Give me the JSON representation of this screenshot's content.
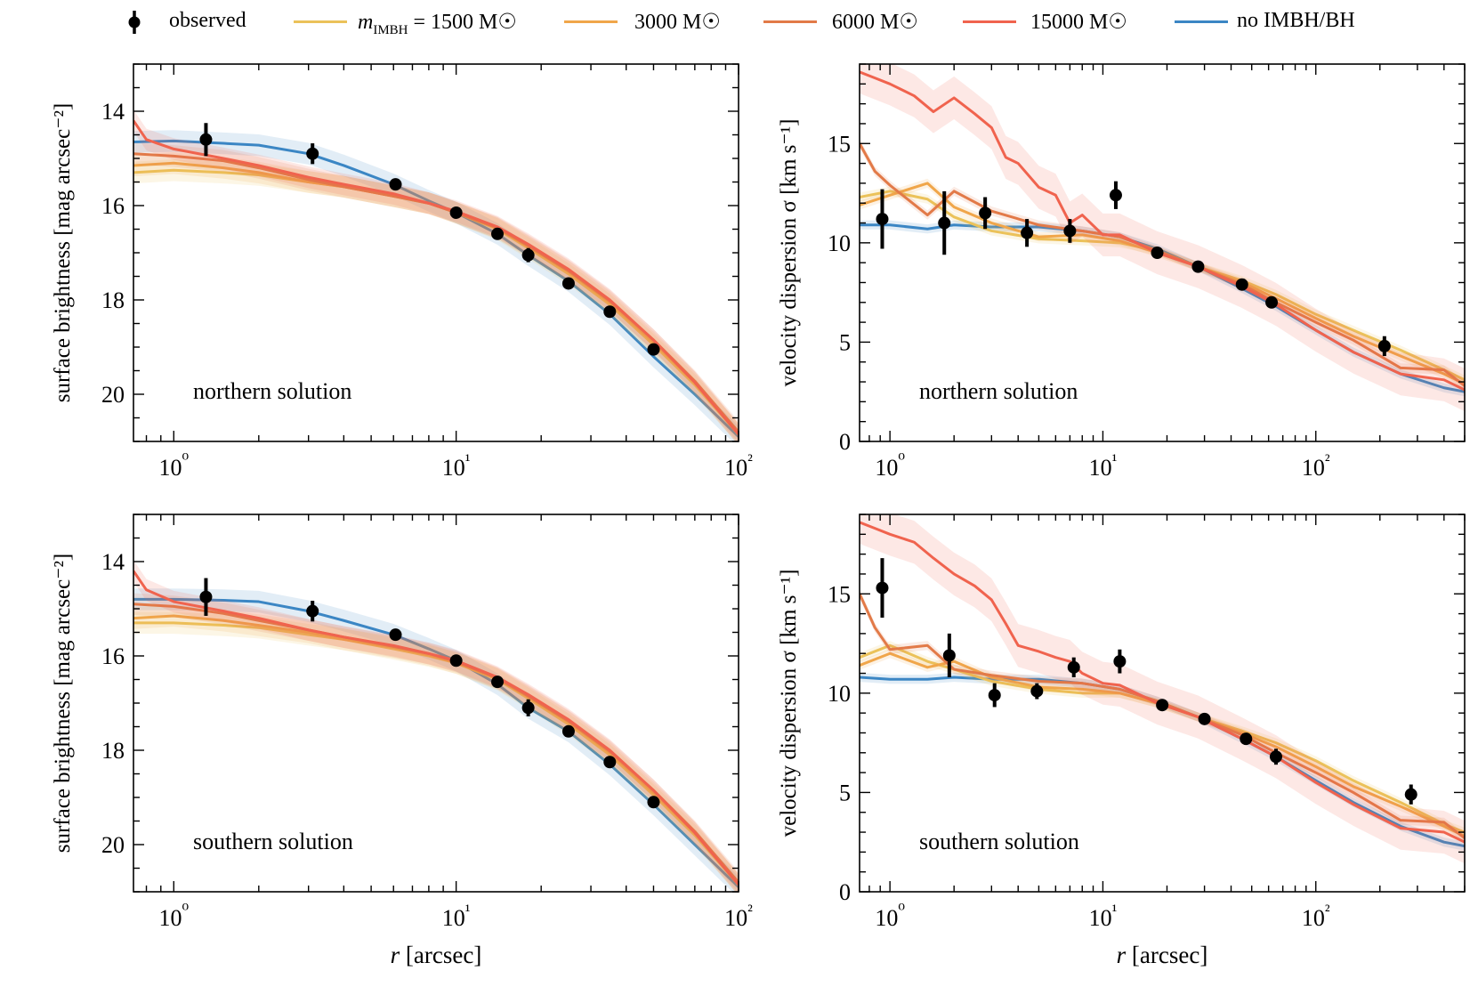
{
  "legend": {
    "items": [
      {
        "key": "observed",
        "label": "observed",
        "kind": "marker",
        "color": "#000000"
      },
      {
        "key": "m1500",
        "label_main": "m",
        "label_sub": "IMBH",
        "label_rest": " = 1500 M☉",
        "kind": "line",
        "color": "#ebc25a"
      },
      {
        "key": "m3000",
        "label": "3000 M☉",
        "kind": "line",
        "color": "#f0a64a"
      },
      {
        "key": "m6000",
        "label": "6000 M☉",
        "kind": "line",
        "color": "#e27a48"
      },
      {
        "key": "m15000",
        "label": "15000 M☉",
        "kind": "line",
        "color": "#f0634e"
      },
      {
        "key": "noimbh",
        "label": "no IMBH/BH",
        "kind": "line",
        "color": "#3b86c4"
      }
    ]
  },
  "chart_data": [
    {
      "id": "sb-north",
      "type": "line",
      "title": "",
      "annotation": "northern solution",
      "xlabel": "",
      "ylabel": "surface brightness [mag arcsec⁻²]",
      "xscale": "log",
      "xlim": [
        0.72,
        100
      ],
      "ylim": [
        21,
        13
      ],
      "y_inverted": true,
      "yticks": [
        14,
        16,
        18,
        20
      ],
      "xticks": [
        "10⁰",
        "10¹",
        "10²"
      ],
      "series": [
        {
          "name": "no IMBH/BH",
          "color": "#3b86c4",
          "x": [
            0.72,
            1,
            1.5,
            2,
            3,
            4,
            6,
            8,
            10,
            14,
            18,
            25,
            35,
            50,
            70,
            100
          ],
          "y": [
            14.65,
            14.63,
            14.68,
            14.72,
            14.9,
            15.15,
            15.55,
            15.9,
            16.15,
            16.6,
            17.05,
            17.6,
            18.3,
            19.2,
            20.0,
            20.9
          ]
        },
        {
          "name": "m_IMBH = 1500 M☉",
          "color": "#ebc25a",
          "x": [
            0.72,
            1,
            1.5,
            2,
            3,
            4,
            6,
            8,
            10,
            14,
            18,
            25,
            35,
            50,
            70,
            100
          ],
          "y": [
            15.3,
            15.25,
            15.3,
            15.35,
            15.5,
            15.6,
            15.8,
            15.95,
            16.15,
            16.5,
            16.9,
            17.45,
            18.1,
            18.95,
            19.8,
            20.85
          ]
        },
        {
          "name": "3000 M☉",
          "color": "#f0a64a",
          "x": [
            0.72,
            1,
            1.5,
            2,
            3,
            4,
            6,
            8,
            10,
            14,
            18,
            25,
            35,
            50,
            70,
            100
          ],
          "y": [
            15.15,
            15.1,
            15.2,
            15.3,
            15.5,
            15.6,
            15.8,
            15.95,
            16.15,
            16.48,
            16.87,
            17.4,
            18.05,
            18.9,
            19.75,
            20.85
          ]
        },
        {
          "name": "6000 M☉",
          "color": "#e27a48",
          "x": [
            0.72,
            1,
            1.5,
            2,
            3,
            4,
            6,
            8,
            10,
            14,
            18,
            25,
            35,
            50,
            70,
            100
          ],
          "y": [
            14.9,
            14.95,
            15.05,
            15.2,
            15.45,
            15.6,
            15.8,
            15.95,
            16.15,
            16.47,
            16.85,
            17.38,
            18.02,
            18.85,
            19.72,
            20.8
          ]
        },
        {
          "name": "15000 M☉",
          "color": "#f0634e",
          "x": [
            0.72,
            0.8,
            1,
            1.5,
            2,
            3,
            4,
            6,
            8,
            10,
            14,
            18,
            25,
            35,
            50,
            70,
            100
          ],
          "y": [
            14.2,
            14.6,
            14.8,
            15.0,
            15.15,
            15.4,
            15.55,
            15.75,
            15.95,
            16.12,
            16.45,
            16.82,
            17.35,
            18.0,
            18.85,
            19.75,
            20.85
          ]
        }
      ],
      "observed": {
        "x": [
          1.3,
          3.1,
          6.1,
          10.0,
          14.0,
          18.0,
          25.0,
          35.0,
          50.0
        ],
        "y": [
          14.6,
          14.9,
          15.55,
          16.15,
          16.6,
          17.05,
          17.65,
          18.25,
          19.05
        ],
        "err": [
          0.35,
          0.22,
          0.12,
          0.12,
          0.12,
          0.15,
          0.08,
          0.08,
          0.08
        ]
      }
    },
    {
      "id": "vd-north",
      "type": "line",
      "title": "",
      "annotation": "northern solution",
      "xlabel": "",
      "ylabel": "velocity dispersion σ [km s⁻¹]",
      "xscale": "log",
      "xlim": [
        0.72,
        500
      ],
      "ylim": [
        0,
        19
      ],
      "yticks": [
        0,
        5,
        10,
        15
      ],
      "xticks": [
        "10⁰",
        "10¹",
        "10²"
      ],
      "series": [
        {
          "name": "no IMBH/BH",
          "color": "#3b86c4",
          "x": [
            0.72,
            1,
            1.5,
            2,
            3,
            5,
            8,
            12,
            18,
            28,
            45,
            65,
            100,
            150,
            250,
            400,
            500
          ],
          "y": [
            10.9,
            10.9,
            10.7,
            10.9,
            10.8,
            10.8,
            10.6,
            10.3,
            9.7,
            8.8,
            7.7,
            6.8,
            5.6,
            4.5,
            3.4,
            2.7,
            2.5
          ]
        },
        {
          "name": "m_IMBH = 1500 M☉",
          "color": "#ebc25a",
          "x": [
            0.72,
            1,
            1.5,
            2,
            3,
            5,
            8,
            12,
            18,
            28,
            45,
            65,
            100,
            150,
            250,
            400,
            500
          ],
          "y": [
            12.3,
            12.6,
            12.2,
            11.3,
            10.6,
            10.2,
            10.1,
            10.0,
            9.6,
            8.8,
            8.1,
            7.4,
            6.4,
            5.6,
            4.6,
            3.6,
            3.1
          ]
        },
        {
          "name": "3000 M☉",
          "color": "#f0a64a",
          "x": [
            0.72,
            1,
            1.5,
            2,
            3,
            5,
            8,
            12,
            18,
            28,
            45,
            65,
            100,
            150,
            250,
            400,
            500
          ],
          "y": [
            11.9,
            12.4,
            13.0,
            11.8,
            11.0,
            10.3,
            10.4,
            10.1,
            9.5,
            8.8,
            8.0,
            7.2,
            6.2,
            5.3,
            4.3,
            3.4,
            2.9
          ]
        },
        {
          "name": "6000 M☉",
          "color": "#e27a48",
          "x": [
            0.72,
            0.85,
            1,
            1.5,
            2,
            3,
            5,
            8,
            12,
            18,
            28,
            45,
            65,
            100,
            150,
            250,
            400,
            500
          ],
          "y": [
            15.0,
            13.6,
            12.9,
            11.4,
            12.6,
            11.6,
            10.9,
            10.6,
            10.3,
            9.6,
            8.8,
            7.9,
            7.0,
            6.0,
            5.1,
            3.7,
            3.6,
            2.8
          ]
        },
        {
          "name": "15000 M☉",
          "color": "#f0634e",
          "x": [
            0.72,
            0.85,
            1,
            1.3,
            1.6,
            2,
            2.5,
            3,
            3.5,
            4,
            5,
            6,
            7,
            8,
            10,
            12,
            18,
            28,
            45,
            65,
            100,
            150,
            250,
            400,
            500
          ],
          "y": [
            18.6,
            18.3,
            18.0,
            17.4,
            16.6,
            17.3,
            16.5,
            15.8,
            14.3,
            14.0,
            12.8,
            12.4,
            11.0,
            11.4,
            10.4,
            10.4,
            9.5,
            8.8,
            7.8,
            6.9,
            5.6,
            4.5,
            3.4,
            3.1,
            2.6
          ]
        }
      ],
      "observed": {
        "x": [
          0.92,
          1.8,
          2.8,
          4.4,
          7.0,
          11.5,
          18.0,
          28.0,
          45.0,
          62.0,
          210.0
        ],
        "y": [
          11.2,
          11.0,
          11.5,
          10.5,
          10.6,
          12.4,
          9.5,
          8.8,
          7.9,
          7.0,
          4.8
        ],
        "err": [
          1.5,
          1.6,
          0.8,
          0.7,
          0.6,
          0.7,
          0.2,
          0.2,
          0.2,
          0.3,
          0.5
        ]
      }
    },
    {
      "id": "sb-south",
      "type": "line",
      "title": "",
      "annotation": "southern solution",
      "xlabel": "r [arcsec]",
      "ylabel": "surface brightness [mag arcsec⁻²]",
      "xscale": "log",
      "xlim": [
        0.72,
        100
      ],
      "ylim": [
        21,
        13
      ],
      "y_inverted": true,
      "yticks": [
        14,
        16,
        18,
        20
      ],
      "xticks": [
        "10⁰",
        "10¹",
        "10²"
      ],
      "series": [
        {
          "name": "no IMBH/BH",
          "color": "#3b86c4",
          "x": [
            0.72,
            1,
            1.5,
            2,
            3,
            4,
            6,
            8,
            10,
            14,
            18,
            25,
            35,
            50,
            70,
            100
          ],
          "y": [
            14.8,
            14.8,
            14.82,
            14.85,
            15.05,
            15.25,
            15.55,
            15.85,
            16.1,
            16.6,
            17.1,
            17.6,
            18.3,
            19.15,
            20.0,
            20.9
          ]
        },
        {
          "name": "m_IMBH = 1500 M☉",
          "color": "#ebc25a",
          "x": [
            0.72,
            1,
            1.5,
            2,
            3,
            4,
            6,
            8,
            10,
            14,
            18,
            25,
            35,
            50,
            70,
            100
          ],
          "y": [
            15.3,
            15.3,
            15.35,
            15.4,
            15.55,
            15.65,
            15.85,
            16.0,
            16.15,
            16.5,
            16.9,
            17.45,
            18.1,
            18.95,
            19.8,
            20.85
          ]
        },
        {
          "name": "3000 M☉",
          "color": "#f0a64a",
          "x": [
            0.72,
            1,
            1.5,
            2,
            3,
            4,
            6,
            8,
            10,
            14,
            18,
            25,
            35,
            50,
            70,
            100
          ],
          "y": [
            15.2,
            15.15,
            15.25,
            15.35,
            15.5,
            15.65,
            15.82,
            15.98,
            16.15,
            16.48,
            16.87,
            17.4,
            18.05,
            18.9,
            19.75,
            20.85
          ]
        },
        {
          "name": "6000 M☉",
          "color": "#e27a48",
          "x": [
            0.72,
            1,
            1.5,
            2,
            3,
            4,
            6,
            8,
            10,
            14,
            18,
            25,
            35,
            50,
            70,
            100
          ],
          "y": [
            14.9,
            14.95,
            15.1,
            15.25,
            15.45,
            15.6,
            15.8,
            15.95,
            16.12,
            16.47,
            16.85,
            17.38,
            18.02,
            18.85,
            19.72,
            20.8
          ]
        },
        {
          "name": "15000 M☉",
          "color": "#f0634e",
          "x": [
            0.72,
            0.8,
            1,
            1.5,
            2,
            3,
            4,
            6,
            8,
            10,
            14,
            18,
            25,
            35,
            50,
            70,
            100
          ],
          "y": [
            14.2,
            14.6,
            14.85,
            15.05,
            15.2,
            15.45,
            15.6,
            15.78,
            15.95,
            16.1,
            16.45,
            16.82,
            17.35,
            18.0,
            18.85,
            19.75,
            20.85
          ]
        }
      ],
      "observed": {
        "x": [
          1.3,
          3.1,
          6.1,
          10.0,
          14.0,
          18.0,
          25.0,
          35.0,
          50.0
        ],
        "y": [
          14.75,
          15.05,
          15.55,
          16.1,
          16.55,
          17.1,
          17.6,
          18.25,
          19.1
        ],
        "err": [
          0.4,
          0.22,
          0.12,
          0.12,
          0.12,
          0.18,
          0.08,
          0.08,
          0.08
        ]
      }
    },
    {
      "id": "vd-south",
      "type": "line",
      "title": "",
      "annotation": "southern solution",
      "xlabel": "r [arcsec]",
      "ylabel": "velocity dispersion σ [km s⁻¹]",
      "xscale": "log",
      "xlim": [
        0.72,
        500
      ],
      "ylim": [
        0,
        19
      ],
      "yticks": [
        0,
        5,
        10,
        15
      ],
      "xticks": [
        "10⁰",
        "10¹",
        "10²"
      ],
      "series": [
        {
          "name": "no IMBH/BH",
          "color": "#3b86c4",
          "x": [
            0.72,
            1,
            1.5,
            2,
            3,
            5,
            8,
            12,
            18,
            28,
            45,
            65,
            100,
            150,
            250,
            400,
            500
          ],
          "y": [
            10.8,
            10.7,
            10.7,
            10.8,
            10.7,
            10.7,
            10.5,
            10.2,
            9.6,
            8.8,
            7.7,
            6.8,
            5.6,
            4.5,
            3.3,
            2.5,
            2.3
          ]
        },
        {
          "name": "m_IMBH = 1500 M☉",
          "color": "#ebc25a",
          "x": [
            0.72,
            1,
            1.5,
            2,
            3,
            5,
            8,
            12,
            18,
            28,
            45,
            65,
            100,
            150,
            250,
            400,
            500
          ],
          "y": [
            11.8,
            12.4,
            11.6,
            11.2,
            10.6,
            10.2,
            10.0,
            10.0,
            9.5,
            8.8,
            8.1,
            7.5,
            6.6,
            5.6,
            4.5,
            3.4,
            3.0
          ]
        },
        {
          "name": "3000 M☉",
          "color": "#f0a64a",
          "x": [
            0.72,
            1,
            1.5,
            2,
            3,
            5,
            8,
            12,
            18,
            28,
            45,
            65,
            100,
            150,
            250,
            400,
            500
          ],
          "y": [
            11.4,
            12.0,
            11.3,
            11.6,
            10.8,
            10.3,
            10.2,
            10.0,
            9.5,
            8.8,
            8.0,
            7.3,
            6.3,
            5.3,
            4.3,
            3.3,
            2.8
          ]
        },
        {
          "name": "6000 M☉",
          "color": "#e27a48",
          "x": [
            0.72,
            0.85,
            1,
            1.5,
            2,
            3,
            5,
            8,
            12,
            18,
            28,
            45,
            65,
            100,
            150,
            250,
            400,
            500
          ],
          "y": [
            15.0,
            13.3,
            12.2,
            12.4,
            11.2,
            10.9,
            10.6,
            10.5,
            10.2,
            9.6,
            8.8,
            7.9,
            7.0,
            6.0,
            5.0,
            3.6,
            3.5,
            2.7
          ]
        },
        {
          "name": "15000 M☉",
          "color": "#f0634e",
          "x": [
            0.72,
            0.85,
            1,
            1.3,
            1.6,
            2,
            2.5,
            3,
            3.5,
            4,
            5,
            6,
            7,
            8,
            10,
            12,
            18,
            28,
            45,
            65,
            100,
            150,
            250,
            400,
            500
          ],
          "y": [
            18.6,
            18.3,
            18.0,
            17.6,
            16.8,
            16.0,
            15.4,
            14.7,
            13.5,
            12.4,
            12.1,
            11.8,
            11.6,
            11.0,
            10.5,
            10.4,
            9.5,
            8.8,
            7.7,
            6.8,
            5.5,
            4.4,
            3.2,
            3.0,
            2.5
          ]
        }
      ],
      "observed": {
        "x": [
          0.92,
          1.9,
          3.1,
          4.9,
          7.3,
          12.0,
          19.0,
          30.0,
          47.0,
          65.0,
          280.0
        ],
        "y": [
          15.3,
          11.9,
          9.9,
          10.1,
          11.3,
          11.6,
          9.4,
          8.7,
          7.7,
          6.8,
          4.9
        ],
        "err": [
          1.5,
          1.1,
          0.6,
          0.4,
          0.5,
          0.6,
          0.2,
          0.2,
          0.2,
          0.4,
          0.5
        ]
      }
    }
  ]
}
